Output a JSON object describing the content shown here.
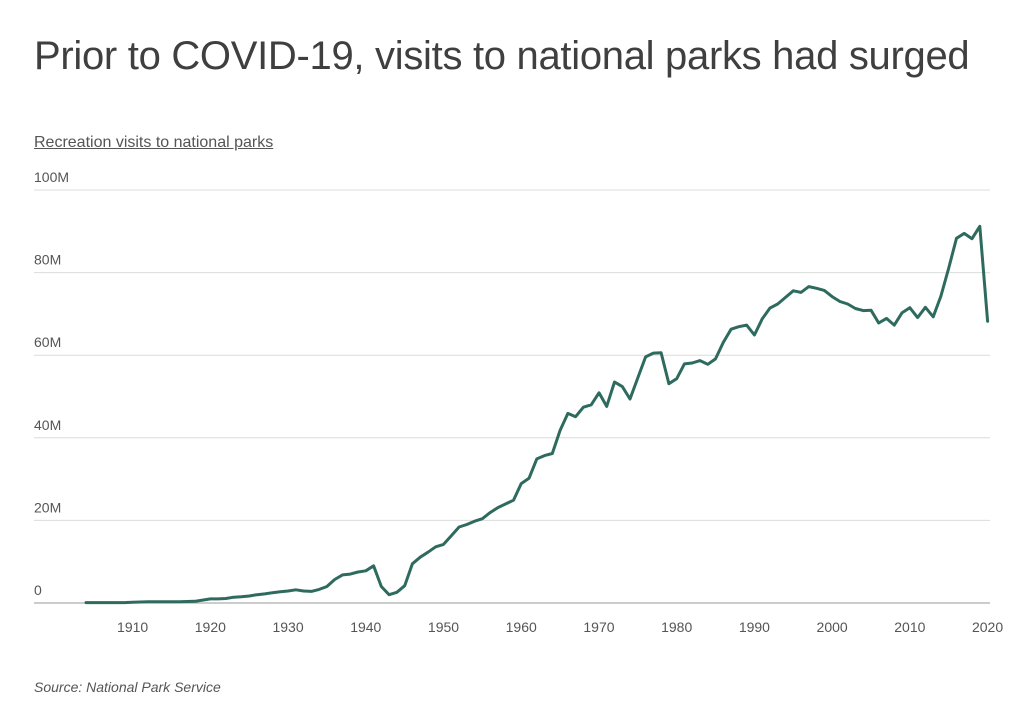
{
  "title": "Prior to COVID-19, visits to national parks had surged",
  "subtitle": "Recreation visits to national parks",
  "source": "Source:  National Park Service",
  "chart_data": {
    "type": "line",
    "title": "Prior to COVID-19, visits to national parks had surged",
    "subtitle": "Recreation visits to national parks",
    "xlabel": "",
    "ylabel": "",
    "xlim": [
      1904,
      2020
    ],
    "ylim": [
      0,
      100
    ],
    "y_unit": "M",
    "grid": "horizontal",
    "line_color": "#2e6b5e",
    "x_ticks": [
      1910,
      1920,
      1930,
      1940,
      1950,
      1960,
      1970,
      1980,
      1990,
      2000,
      2010,
      2020
    ],
    "y_ticks": [
      {
        "value": 0,
        "label": "0"
      },
      {
        "value": 20,
        "label": "20M"
      },
      {
        "value": 40,
        "label": "40M"
      },
      {
        "value": 60,
        "label": "60M"
      },
      {
        "value": 80,
        "label": "80M"
      },
      {
        "value": 100,
        "label": "100M"
      }
    ],
    "series": [
      {
        "x": [
          1904,
          1906,
          1908,
          1909,
          1910,
          1912,
          1914,
          1916,
          1918,
          1919,
          1920,
          1921,
          1922,
          1923,
          1924,
          1925,
          1926,
          1927,
          1928,
          1929,
          1930,
          1931,
          1932,
          1933,
          1934,
          1935,
          1936,
          1937,
          1938,
          1939,
          1940,
          1941,
          1942,
          1943,
          1944,
          1945,
          1946,
          1947,
          1948,
          1949,
          1950,
          1951,
          1952,
          1953,
          1954,
          1955,
          1956,
          1957,
          1958,
          1959,
          1960,
          1961,
          1962,
          1963,
          1964,
          1965,
          1966,
          1967,
          1968,
          1969,
          1970,
          1971,
          1972,
          1973,
          1974,
          1975,
          1976,
          1977,
          1978,
          1979,
          1980,
          1981,
          1982,
          1983,
          1984,
          1985,
          1986,
          1987,
          1988,
          1989,
          1990,
          1991,
          1992,
          1993,
          1994,
          1995,
          1996,
          1997,
          1998,
          1999,
          2000,
          2001,
          2002,
          2003,
          2004,
          2005,
          2006,
          2007,
          2008,
          2009,
          2010,
          2011,
          2012,
          2013,
          2014,
          2015,
          2016,
          2017,
          2018,
          2019,
          2020
        ],
        "values": [
          0.1,
          0.1,
          0.1,
          0.1,
          0.2,
          0.3,
          0.3,
          0.3,
          0.4,
          0.7,
          1.0,
          1.0,
          1.1,
          1.4,
          1.5,
          1.7,
          2.0,
          2.2,
          2.5,
          2.7,
          2.9,
          3.2,
          2.9,
          2.8,
          3.3,
          4.0,
          5.7,
          6.8,
          7.0,
          7.5,
          7.8,
          9.0,
          4.0,
          2.0,
          2.6,
          4.2,
          9.5,
          11.1,
          12.3,
          13.6,
          14.2,
          16.3,
          18.4,
          19.0,
          19.8,
          20.4,
          21.9,
          23.1,
          24.0,
          24.9,
          28.9,
          30.2,
          34.9,
          35.7,
          36.2,
          41.8,
          45.9,
          45.1,
          47.4,
          48.0,
          50.9,
          47.6,
          53.5,
          52.4,
          49.4,
          54.5,
          59.6,
          60.5,
          60.6,
          53.1,
          54.3,
          57.9,
          58.1,
          58.7,
          57.8,
          59.1,
          63.1,
          66.3,
          66.9,
          67.3,
          64.9,
          68.8,
          71.4,
          72.4,
          74.0,
          75.6,
          75.2,
          76.6,
          76.2,
          75.7,
          74.2,
          73.0,
          72.4,
          71.3,
          70.8,
          70.9,
          67.8,
          68.9,
          67.3,
          70.3,
          71.5,
          69.1,
          71.6,
          69.3,
          74.3,
          81.1,
          88.3,
          89.5,
          88.2,
          91.2,
          68.2
        ]
      }
    ]
  }
}
